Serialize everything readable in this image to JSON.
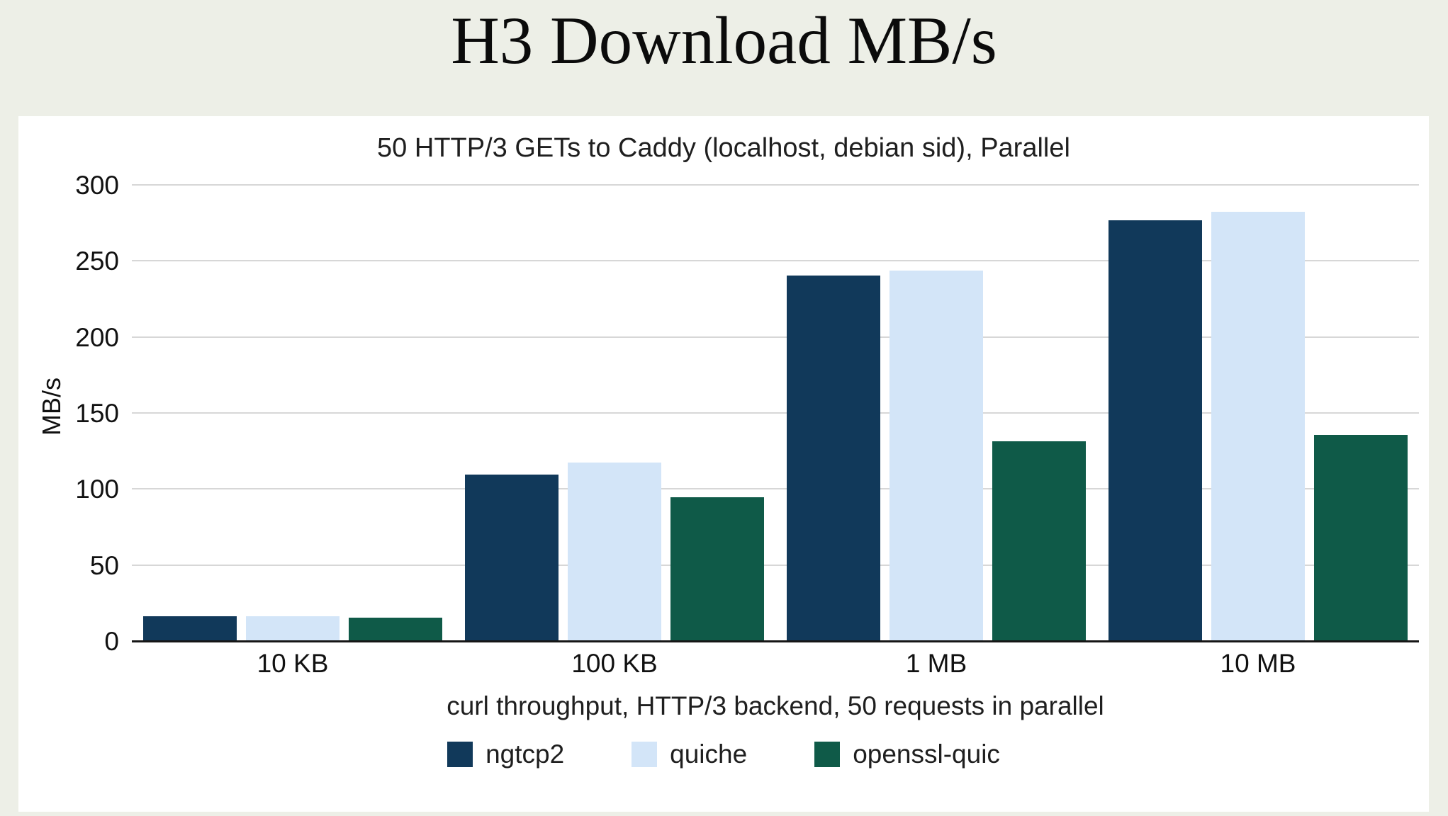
{
  "page": {
    "title": "H3 Download MB/s"
  },
  "chart_data": {
    "type": "bar",
    "title": "50 HTTP/3 GETs to Caddy (localhost, debian sid), Parallel",
    "xlabel": "curl throughput, HTTP/3 backend, 50 requests in parallel",
    "ylabel": "MB/s",
    "ylim": [
      0,
      300
    ],
    "yticks": [
      0,
      50,
      100,
      150,
      200,
      250,
      300
    ],
    "grid": true,
    "legend_position": "bottom",
    "categories": [
      "10 KB",
      "100 KB",
      "1 MB",
      "10 MB"
    ],
    "series": [
      {
        "name": "ngtcp2",
        "color": "#11395a",
        "values": [
          17,
          110,
          241,
          277
        ]
      },
      {
        "name": "quiche",
        "color": "#d3e5f8",
        "values": [
          17,
          118,
          244,
          283
        ]
      },
      {
        "name": "openssl-quic",
        "color": "#0f5a48",
        "values": [
          16,
          95,
          132,
          136
        ]
      }
    ],
    "colors": {
      "background": "#edefe7",
      "panel": "#ffffff",
      "gridline": "#d7d7d7",
      "axis_line": "#161616"
    }
  }
}
